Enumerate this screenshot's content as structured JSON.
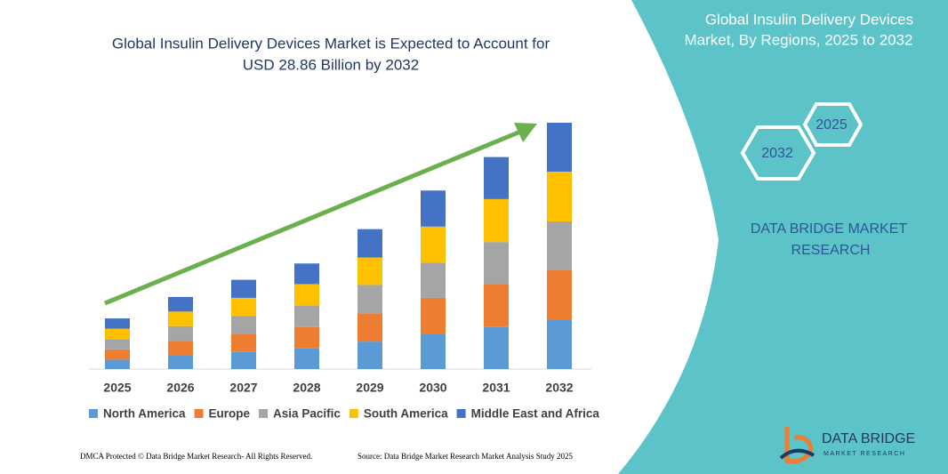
{
  "chart_data": {
    "type": "stacked_bar",
    "title": [
      "Global Insulin Delivery Devices Market is Expected to Account for",
      "USD 28.86 Billion by 2032"
    ],
    "categories": [
      "2025",
      "2026",
      "2027",
      "2028",
      "2029",
      "2030",
      "2031",
      "2032"
    ],
    "series": [
      {
        "name": "North America",
        "color": "#5b9bd5",
        "values": [
          1.1,
          1.6,
          2.0,
          2.4,
          3.2,
          4.1,
          4.9,
          5.7
        ]
      },
      {
        "name": "Europe",
        "color": "#ed7d31",
        "values": [
          1.2,
          1.7,
          2.1,
          2.5,
          3.3,
          4.2,
          5.0,
          5.8
        ]
      },
      {
        "name": "Asia Pacific",
        "color": "#a5a5a5",
        "values": [
          1.2,
          1.7,
          2.1,
          2.5,
          3.3,
          4.1,
          4.9,
          5.7
        ]
      },
      {
        "name": "South America",
        "color": "#ffc000",
        "values": [
          1.2,
          1.7,
          2.1,
          2.5,
          3.2,
          4.2,
          5.0,
          5.8
        ]
      },
      {
        "name": "Middle East and Africa",
        "color": "#4472c4",
        "values": [
          1.2,
          1.7,
          2.1,
          2.4,
          3.3,
          4.2,
          4.9,
          5.7
        ]
      }
    ],
    "legend": "bottom"
  },
  "panel": {
    "title": [
      "Global Insulin Delivery Devices",
      "Market, By Regions, 2025 to 2032"
    ],
    "hex_labels": [
      "2025",
      "2032"
    ],
    "brand": [
      "DATA BRIDGE MARKET",
      "RESEARCH"
    ]
  },
  "footer": {
    "left": "DMCA Protected © Data Bridge Market Research- All Rights Reserved.",
    "right": "Source: Data Bridge Market Research Market Analysis Study 2025"
  },
  "logo": {
    "name": "DATA BRIDGE",
    "tagline": "MARKET RESEARCH"
  }
}
